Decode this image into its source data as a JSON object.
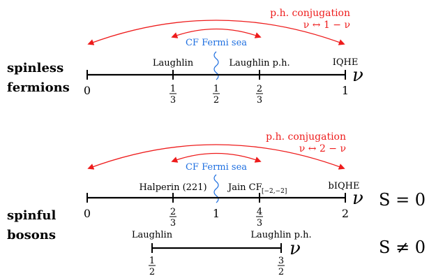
{
  "panel_top": {
    "row_label": [
      "spinless",
      "fermions"
    ],
    "conjugation": {
      "label": "p.h. conjugation",
      "relation": "ν ↔ 1 − ν",
      "color": "#ee1c1c"
    },
    "cf_fermi_sea": {
      "label": "CF Fermi sea",
      "color": "#1e6fe0"
    },
    "axis_symbol": "ν",
    "states": [
      "Laughlin",
      "Laughlin p.h.",
      "IQHE"
    ],
    "ticks": [
      {
        "num": "0",
        "den": ""
      },
      {
        "num": "1",
        "den": "3"
      },
      {
        "num": "1",
        "den": "2"
      },
      {
        "num": "2",
        "den": "3"
      },
      {
        "num": "1",
        "den": ""
      }
    ]
  },
  "panel_bottom": {
    "row_label": [
      "spinful",
      "bosons"
    ],
    "conjugation": {
      "label": "p.h. conjugation",
      "relation": "ν ↔ 2 − ν",
      "color": "#ee1c1c"
    },
    "cf_fermi_sea": {
      "label": "CF Fermi sea",
      "color": "#1e6fe0"
    },
    "axis_symbol": "ν",
    "spin_label": "S = 0",
    "states": [
      "Halperin (221)",
      "Jain CF",
      "[−2,−2]",
      "bIQHE"
    ],
    "ticks": [
      {
        "num": "0",
        "den": ""
      },
      {
        "num": "2",
        "den": "3"
      },
      {
        "num": "1",
        "den": ""
      },
      {
        "num": "4",
        "den": "3"
      },
      {
        "num": "2",
        "den": ""
      }
    ]
  },
  "panel_spin": {
    "axis_symbol": "ν",
    "spin_label": "S ≠ 0",
    "states": [
      "Laughlin",
      "Laughlin p.h."
    ],
    "ticks": [
      {
        "num": "1",
        "den": "2"
      },
      {
        "num": "3",
        "den": "2"
      }
    ]
  }
}
